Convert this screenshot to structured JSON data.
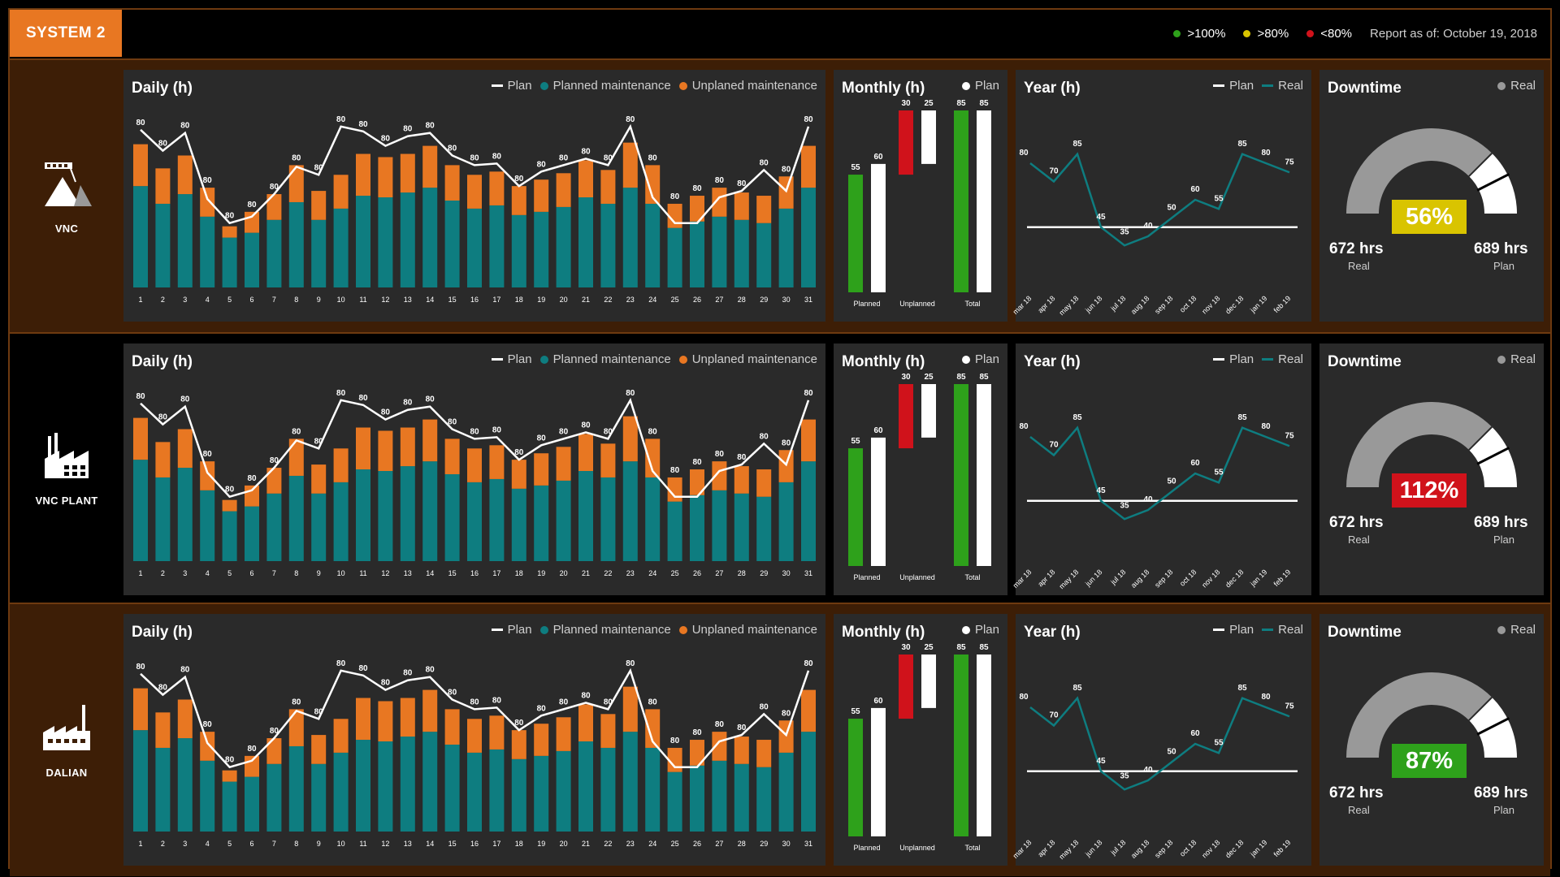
{
  "header": {
    "system_label": "SYSTEM 2",
    "legend": [
      {
        "label": ">100%",
        "color": "#2ea11b"
      },
      {
        "label": ">80%",
        "color": "#d9c400"
      },
      {
        "label": "<80%",
        "color": "#d0121b"
      }
    ],
    "report_text": "Report as of: October 19, 2018"
  },
  "colors": {
    "planned": "#0e7d80",
    "unplanned": "#e87722",
    "plan": "#ffffff",
    "green": "#2ea11b",
    "red": "#d0121b",
    "yellow": "#d9c400",
    "real": "#999999"
  },
  "labels": {
    "daily_title": "Daily (h)",
    "monthly_title": "Monthly (h)",
    "year_title": "Year (h)",
    "downtime_title": "Downtime",
    "legend_plan": "Plan",
    "legend_planned": "Planned maintenance",
    "legend_unplanned": "Unplaned maintenance",
    "legend_real": "Real",
    "real_label": "Real",
    "plan_label": "Plan"
  },
  "rows": [
    {
      "site": "VNC",
      "icon": "mining-icon",
      "gauge": {
        "value_text": "56%",
        "value": 56,
        "real_hrs": "672 hrs",
        "plan_hrs": "689 hrs",
        "color": "#d9c400"
      }
    },
    {
      "site": "VNC PLANT",
      "icon": "plant-icon",
      "gauge": {
        "value_text": "112%",
        "value": 112,
        "real_hrs": "672 hrs",
        "plan_hrs": "689 hrs",
        "color": "#d0121b"
      }
    },
    {
      "site": "DALIAN",
      "icon": "factory-icon",
      "gauge": {
        "value_text": "87%",
        "value": 87,
        "real_hrs": "672 hrs",
        "plan_hrs": "689 hrs",
        "color": "#2ea11b"
      }
    }
  ],
  "chart_data": [
    {
      "type": "bar",
      "title": "Daily (h)",
      "categories": [
        "1",
        "2",
        "3",
        "4",
        "5",
        "6",
        "7",
        "8",
        "9",
        "10",
        "11",
        "12",
        "13",
        "14",
        "15",
        "16",
        "17",
        "18",
        "19",
        "20",
        "21",
        "22",
        "23",
        "24",
        "25",
        "26",
        "27",
        "28",
        "29",
        "30",
        "31"
      ],
      "series": [
        {
          "name": "Planned maintenance",
          "values": [
            63,
            52,
            58,
            44,
            31,
            34,
            42,
            53,
            42,
            49,
            57,
            56,
            59,
            62,
            54,
            49,
            51,
            45,
            47,
            50,
            56,
            52,
            62,
            52,
            37,
            41,
            44,
            42,
            40,
            49,
            62
          ]
        },
        {
          "name": "Unplaned maintenance",
          "values": [
            26,
            22,
            24,
            18,
            7,
            13,
            16,
            23,
            18,
            21,
            26,
            25,
            24,
            26,
            22,
            21,
            21,
            18,
            20,
            21,
            23,
            21,
            28,
            24,
            15,
            16,
            18,
            17,
            17,
            20,
            26
          ]
        },
        {
          "name": "Plan",
          "values": [
            98,
            85,
            96,
            55,
            40,
            44,
            58,
            75,
            70,
            100,
            97,
            88,
            94,
            96,
            82,
            76,
            77,
            63,
            72,
            76,
            80,
            76,
            100,
            56,
            40,
            40,
            56,
            60,
            73,
            60,
            100
          ]
        }
      ],
      "data_labels": [
        "80",
        "80",
        "80",
        "80",
        "80",
        "80",
        "80",
        "80",
        "80",
        "80",
        "80",
        "80",
        "80",
        "80",
        "80",
        "80",
        "80",
        "80",
        "80",
        "80",
        "80",
        "80",
        "80",
        "80",
        "80",
        "80",
        "80",
        "80",
        "80",
        "80",
        "80"
      ],
      "ylim": [
        0,
        110
      ],
      "legend": [
        "Plan",
        "Planned maintenance",
        "Unplaned maintenance"
      ]
    },
    {
      "type": "bar",
      "title": "Monthly (h)",
      "categories": [
        "Planned",
        "Unplanned",
        "Total"
      ],
      "series": [
        {
          "name": "Real",
          "values": [
            55,
            30,
            85
          ]
        },
        {
          "name": "Plan",
          "values": [
            60,
            25,
            85
          ]
        }
      ],
      "note": "Unplanned bars hang from the top of the axis (waterfall style)",
      "ylim": [
        0,
        85
      ],
      "legend": [
        "Plan"
      ]
    },
    {
      "type": "line",
      "title": "Year (h)",
      "x": [
        "mar 18",
        "apr 18",
        "may 18",
        "jun 18",
        "jul 18",
        "aug 18",
        "sep 18",
        "oct 18",
        "nov 18",
        "dec 18",
        "jan 19",
        "feb 19"
      ],
      "series": [
        {
          "name": "Real",
          "values": [
            80,
            70,
            85,
            45,
            35,
            40,
            50,
            60,
            55,
            85,
            80,
            75
          ]
        },
        {
          "name": "Plan",
          "values": [
            45,
            45,
            45,
            45,
            45,
            45,
            45,
            45,
            45,
            45,
            45,
            45
          ]
        }
      ],
      "ylim": [
        20,
        100
      ],
      "legend": [
        "Plan",
        "Real"
      ]
    }
  ]
}
